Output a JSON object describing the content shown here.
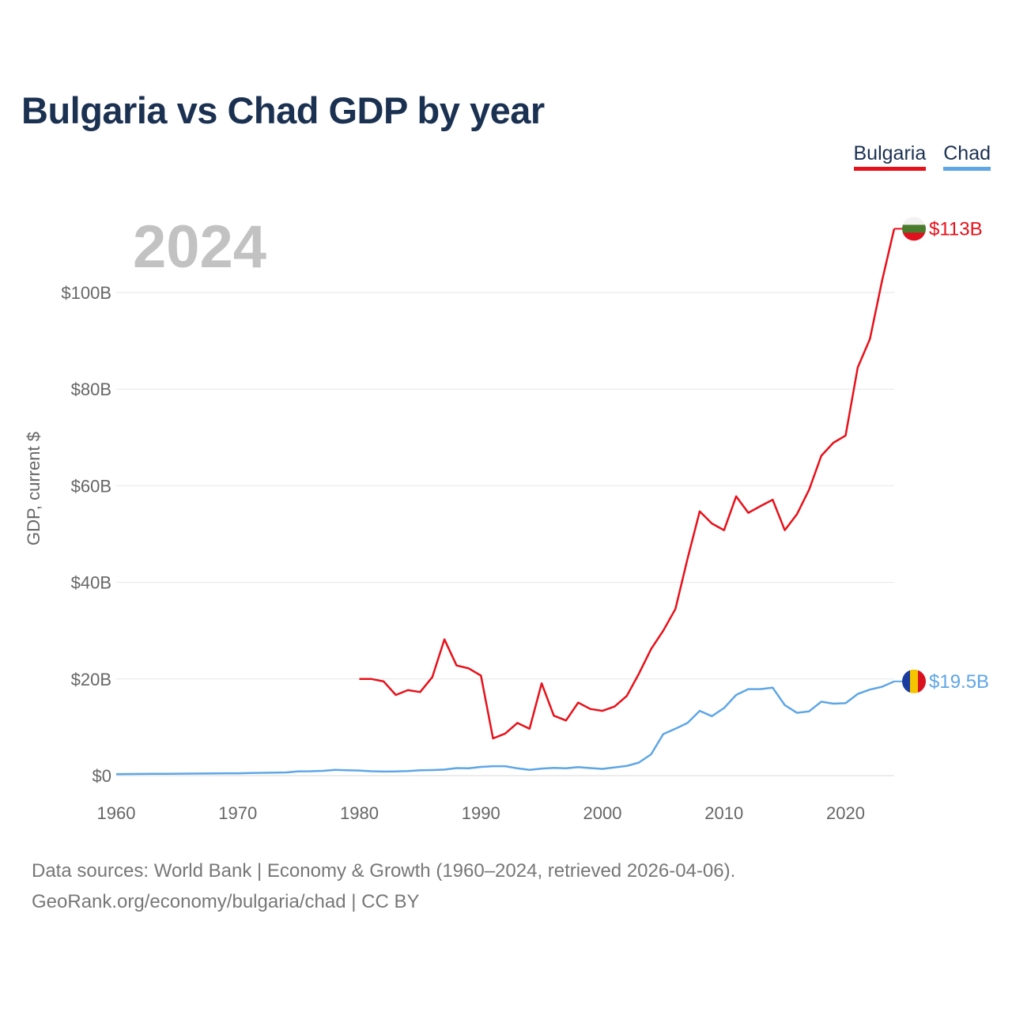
{
  "title": "Bulgaria vs Chad GDP by year",
  "legend": [
    {
      "name": "Bulgaria",
      "color": "#e8101a"
    },
    {
      "name": "Chad",
      "color": "#5ea6e6"
    }
  ],
  "chart_data": {
    "type": "line",
    "title": "Bulgaria vs Chad GDP by year",
    "year_label": "2024",
    "xlabel": "",
    "ylabel": "GDP, current $",
    "xlim": [
      1960,
      2024
    ],
    "ylim": [
      0,
      113
    ],
    "x_ticks": [
      1960,
      1970,
      1980,
      1990,
      2000,
      2010,
      2020
    ],
    "x_tick_labels": [
      "1960",
      "1970",
      "1980",
      "1990",
      "2000",
      "2010",
      "2020"
    ],
    "y_ticks": [
      0,
      20,
      40,
      60,
      80,
      100
    ],
    "y_tick_labels": [
      "$0",
      "$20B",
      "$40B",
      "$60B",
      "$80B",
      "$100B"
    ],
    "grid": true,
    "series": [
      {
        "name": "Bulgaria",
        "color": "#e8101a",
        "end_label": "$113B",
        "flag_colors": [
          "#f2f2f2",
          "#4a7a2c",
          "#e0101e"
        ],
        "x": [
          1980,
          1981,
          1982,
          1983,
          1984,
          1985,
          1986,
          1987,
          1988,
          1989,
          1990,
          1991,
          1992,
          1993,
          1994,
          1995,
          1996,
          1997,
          1998,
          1999,
          2000,
          2001,
          2002,
          2003,
          2004,
          2005,
          2006,
          2007,
          2008,
          2009,
          2010,
          2011,
          2012,
          2013,
          2014,
          2015,
          2016,
          2017,
          2018,
          2019,
          2020,
          2021,
          2022,
          2023,
          2024
        ],
        "values": [
          20.0,
          20.0,
          19.5,
          16.7,
          17.7,
          17.3,
          20.4,
          28.2,
          22.8,
          22.2,
          20.7,
          7.7,
          8.7,
          10.9,
          9.7,
          19.1,
          12.4,
          11.4,
          15.1,
          13.8,
          13.4,
          14.3,
          16.5,
          21.1,
          26.2,
          30.0,
          34.5,
          44.9,
          54.7,
          52.2,
          50.8,
          57.8,
          54.4,
          55.8,
          57.1,
          50.8,
          54.1,
          59.2,
          66.2,
          68.9,
          70.4,
          84.5,
          90.4,
          102.4,
          113.2
        ]
      },
      {
        "name": "Chad",
        "color": "#5ea6e6",
        "end_label": "$19.5B",
        "flag_colors": [
          "#1a3c9e",
          "#f5c400",
          "#d9121f"
        ],
        "x": [
          1960,
          1961,
          1962,
          1963,
          1964,
          1965,
          1966,
          1967,
          1968,
          1969,
          1970,
          1971,
          1972,
          1973,
          1974,
          1975,
          1976,
          1977,
          1978,
          1979,
          1980,
          1981,
          1982,
          1983,
          1984,
          1985,
          1986,
          1987,
          1988,
          1989,
          1990,
          1991,
          1992,
          1993,
          1994,
          1995,
          1996,
          1997,
          1998,
          1999,
          2000,
          2001,
          2002,
          2003,
          2004,
          2005,
          2006,
          2007,
          2008,
          2009,
          2010,
          2011,
          2012,
          2013,
          2014,
          2015,
          2016,
          2017,
          2018,
          2019,
          2020,
          2021,
          2022,
          2023,
          2024
        ],
        "values": [
          0.31,
          0.33,
          0.35,
          0.36,
          0.37,
          0.4,
          0.41,
          0.42,
          0.45,
          0.47,
          0.47,
          0.52,
          0.58,
          0.63,
          0.65,
          0.88,
          0.9,
          0.98,
          1.2,
          1.1,
          1.05,
          0.9,
          0.84,
          0.86,
          0.95,
          1.1,
          1.15,
          1.25,
          1.55,
          1.5,
          1.8,
          1.95,
          1.95,
          1.5,
          1.2,
          1.45,
          1.6,
          1.5,
          1.75,
          1.55,
          1.39,
          1.7,
          2.0,
          2.7,
          4.4,
          8.6,
          9.7,
          10.9,
          13.4,
          12.3,
          14.0,
          16.7,
          17.9,
          17.9,
          18.2,
          14.6,
          13.0,
          13.3,
          15.3,
          14.9,
          15.0,
          16.9,
          17.8,
          18.4,
          19.5
        ]
      }
    ]
  },
  "footer": {
    "line1": "Data sources: World Bank | Economy & Growth (1960–2024, retrieved 2026-04-06).",
    "line2": "GeoRank.org/economy/bulgaria/chad | CC BY"
  }
}
